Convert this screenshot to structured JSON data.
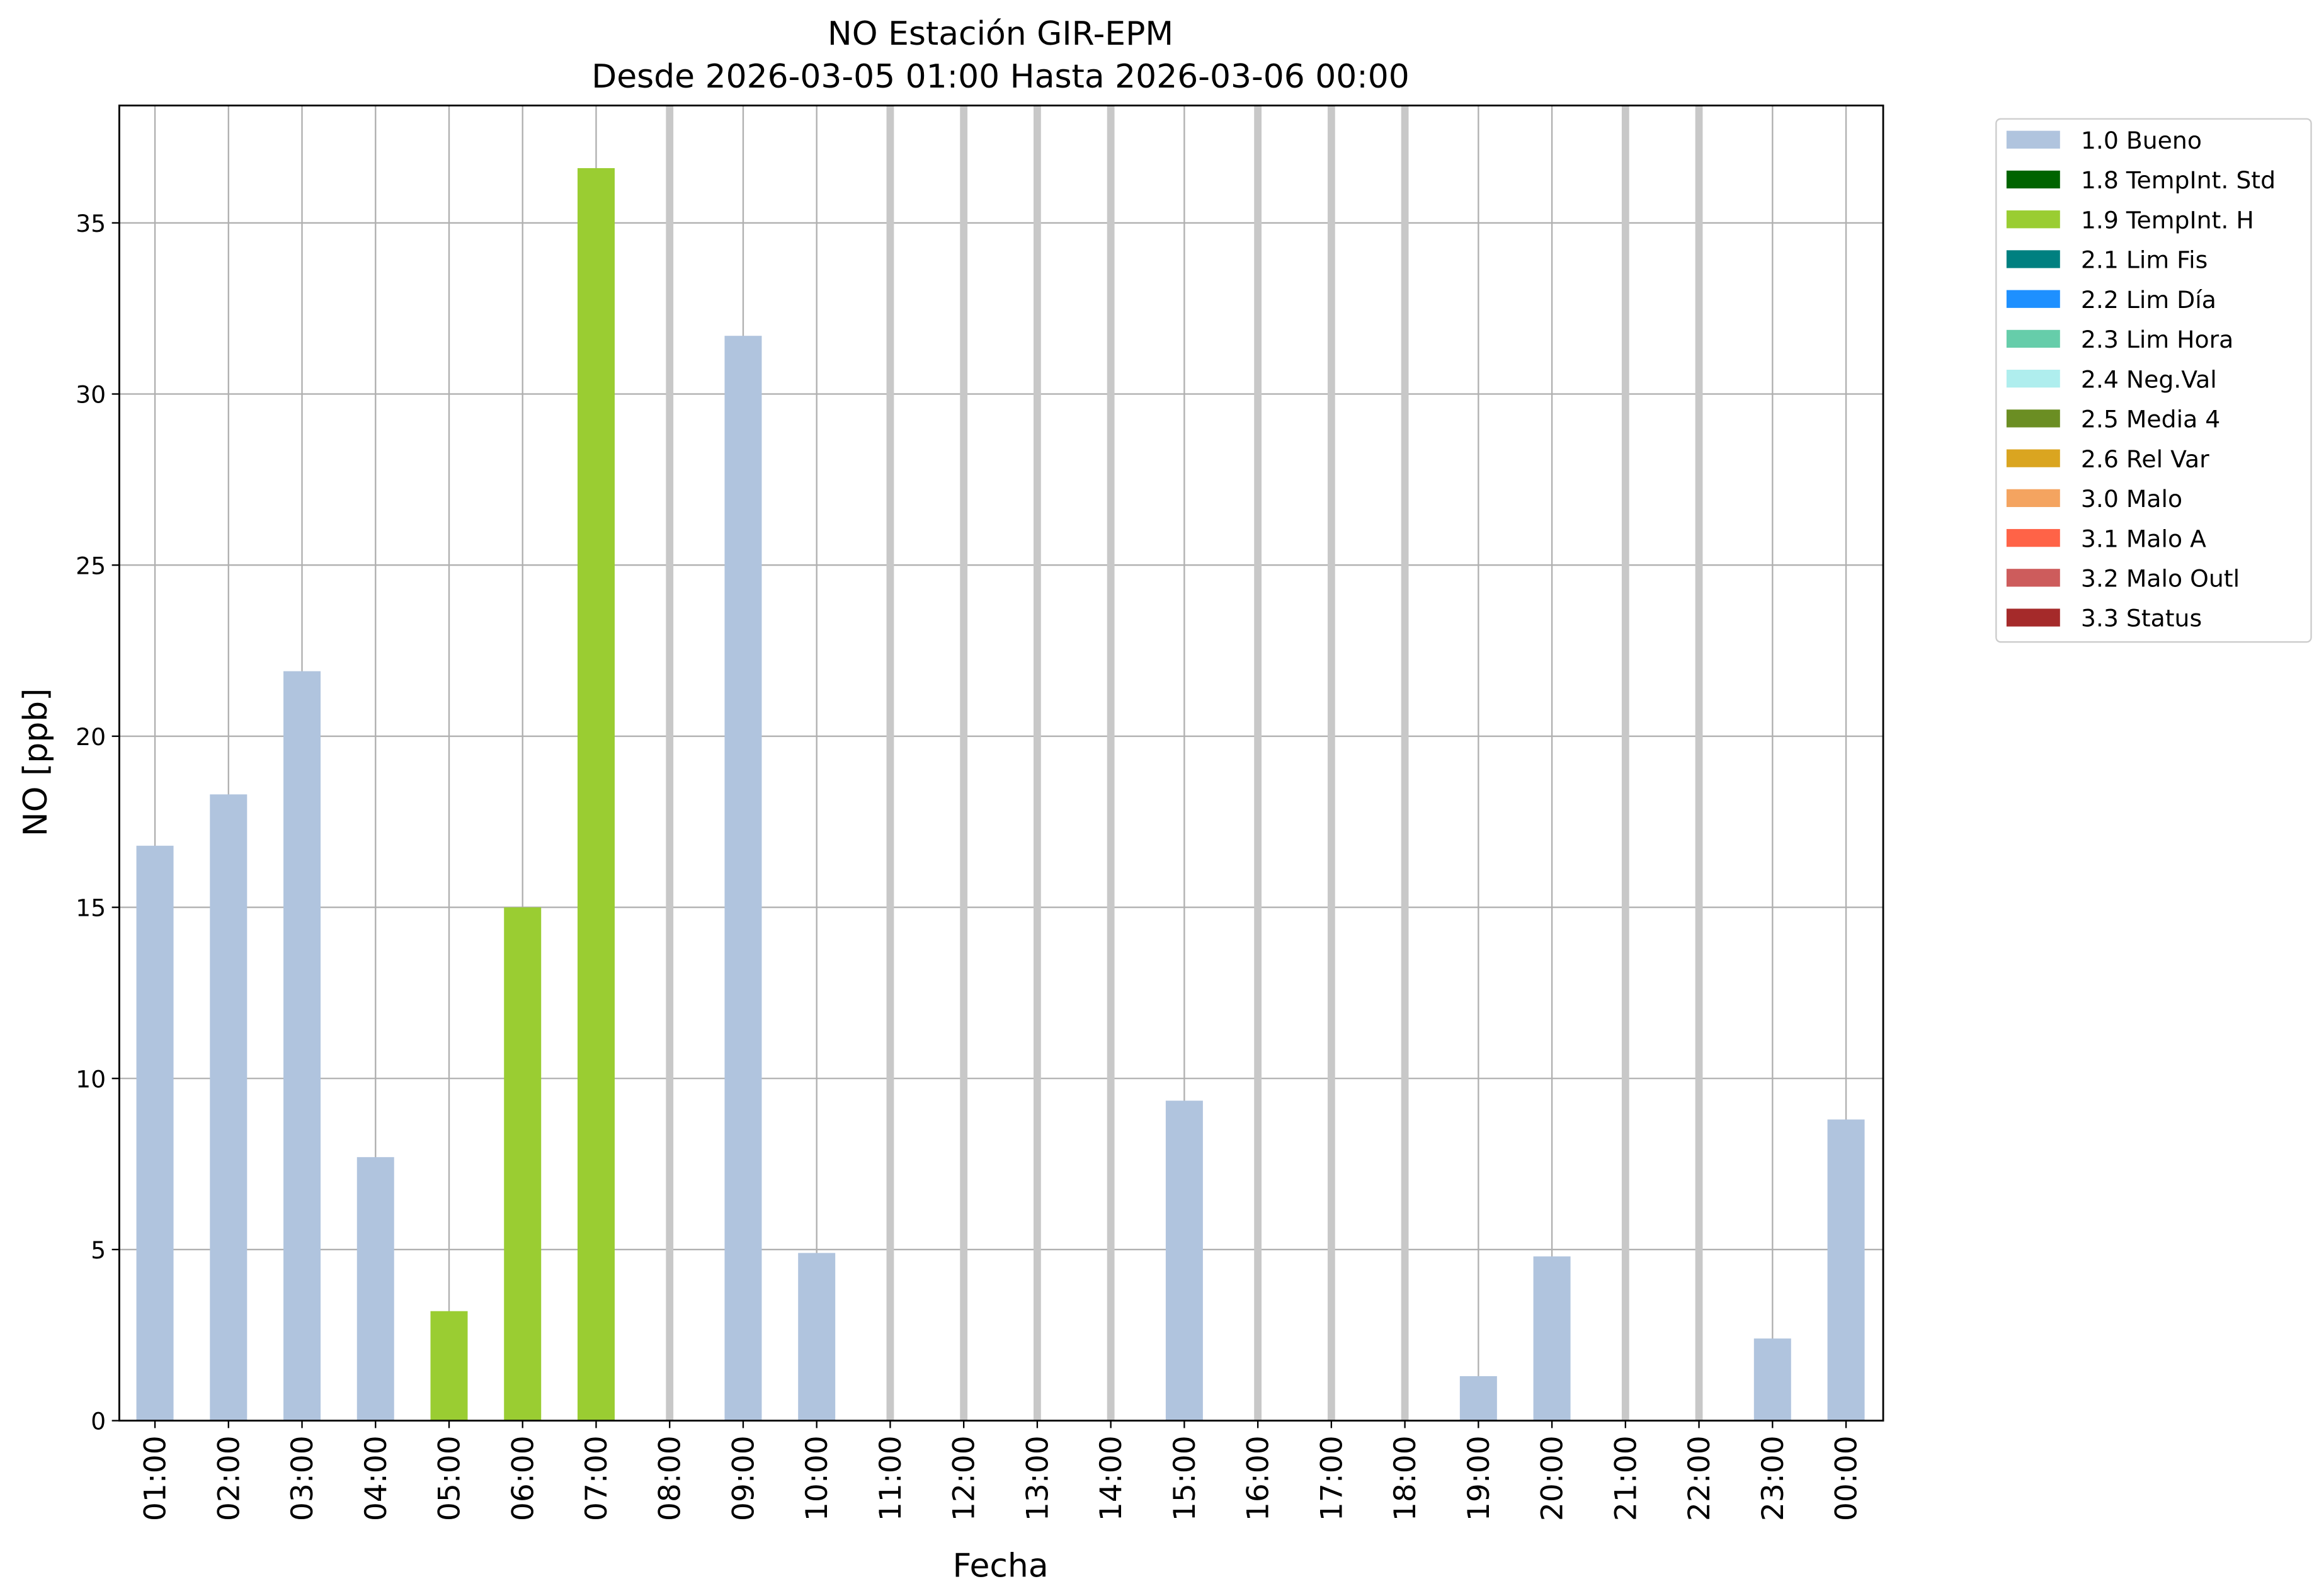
{
  "chart_data": {
    "type": "bar",
    "title": "NO Estación GIR-EPM",
    "subtitle": "Desde 2026-03-05 01:00 Hasta 2026-03-06 00:00",
    "x_label": "Fecha",
    "y_label": "NO [ppb]",
    "categories": [
      "01:00",
      "02:00",
      "03:00",
      "04:00",
      "05:00",
      "06:00",
      "07:00",
      "08:00",
      "09:00",
      "10:00",
      "11:00",
      "12:00",
      "13:00",
      "14:00",
      "15:00",
      "16:00",
      "17:00",
      "18:00",
      "19:00",
      "20:00",
      "21:00",
      "22:00",
      "23:00",
      "00:00"
    ],
    "series": [
      {
        "name": "1.0 Bueno",
        "color": "#b0c4de",
        "values": [
          16.8,
          18.3,
          21.9,
          7.7,
          null,
          null,
          null,
          null,
          31.7,
          4.9,
          null,
          null,
          null,
          null,
          9.35,
          null,
          null,
          null,
          1.3,
          4.8,
          null,
          null,
          2.4,
          8.8
        ]
      },
      {
        "name": "1.8 TempInt. Std",
        "color": "#006400",
        "values": [
          null,
          null,
          null,
          null,
          null,
          null,
          null,
          null,
          null,
          null,
          null,
          null,
          null,
          null,
          null,
          null,
          null,
          null,
          null,
          null,
          null,
          null,
          null,
          null
        ]
      },
      {
        "name": "1.9 TempInt. H",
        "color": "#9acd32",
        "values": [
          null,
          null,
          null,
          null,
          3.2,
          15.0,
          36.6,
          null,
          null,
          null,
          null,
          null,
          null,
          null,
          null,
          null,
          null,
          null,
          null,
          null,
          null,
          null,
          null,
          null
        ]
      },
      {
        "name": "2.1 Lim Fis",
        "color": "#008080",
        "values": [
          null,
          null,
          null,
          null,
          null,
          null,
          null,
          null,
          null,
          null,
          null,
          null,
          null,
          null,
          null,
          null,
          null,
          null,
          null,
          null,
          null,
          null,
          null,
          null
        ]
      },
      {
        "name": "2.2 Lim Día",
        "color": "#1e90ff",
        "values": [
          null,
          null,
          null,
          null,
          null,
          null,
          null,
          null,
          null,
          null,
          null,
          null,
          null,
          null,
          null,
          null,
          null,
          null,
          null,
          null,
          null,
          null,
          null,
          null
        ]
      },
      {
        "name": "2.3 Lim Hora",
        "color": "#66cdaa",
        "values": [
          null,
          null,
          null,
          null,
          null,
          null,
          null,
          null,
          null,
          null,
          null,
          null,
          null,
          null,
          null,
          null,
          null,
          null,
          null,
          null,
          null,
          null,
          null,
          null
        ]
      },
      {
        "name": "2.4 Neg.Val",
        "color": "#afeeee",
        "values": [
          null,
          null,
          null,
          null,
          null,
          null,
          null,
          null,
          null,
          null,
          null,
          null,
          null,
          null,
          null,
          null,
          null,
          null,
          null,
          null,
          null,
          null,
          null,
          null
        ]
      },
      {
        "name": "2.5 Media 4",
        "color": "#6b8e23",
        "values": [
          null,
          null,
          null,
          null,
          null,
          null,
          null,
          null,
          null,
          null,
          null,
          null,
          null,
          null,
          null,
          null,
          null,
          null,
          null,
          null,
          null,
          null,
          null,
          null
        ]
      },
      {
        "name": "2.6 Rel Var",
        "color": "#daa520",
        "values": [
          null,
          null,
          null,
          null,
          null,
          null,
          null,
          null,
          null,
          null,
          null,
          null,
          null,
          null,
          null,
          null,
          null,
          null,
          null,
          null,
          null,
          null,
          null,
          null
        ]
      },
      {
        "name": "3.0 Malo",
        "color": "#f4a460",
        "values": [
          null,
          null,
          null,
          null,
          null,
          null,
          null,
          null,
          null,
          null,
          null,
          null,
          null,
          null,
          null,
          null,
          null,
          null,
          null,
          null,
          null,
          null,
          null,
          null
        ]
      },
      {
        "name": "3.1 Malo A",
        "color": "#ff6347",
        "values": [
          null,
          null,
          null,
          null,
          null,
          null,
          null,
          null,
          null,
          null,
          null,
          null,
          null,
          null,
          null,
          null,
          null,
          null,
          null,
          null,
          null,
          null,
          null,
          null
        ]
      },
      {
        "name": "3.2 Malo Outl",
        "color": "#cd5c5c",
        "values": [
          null,
          null,
          null,
          null,
          null,
          null,
          null,
          null,
          null,
          null,
          null,
          null,
          null,
          null,
          null,
          null,
          null,
          null,
          null,
          null,
          null,
          null,
          null,
          null
        ]
      },
      {
        "name": "3.3 Status",
        "color": "#a52a2a",
        "values": [
          null,
          null,
          null,
          null,
          null,
          null,
          null,
          null,
          null,
          null,
          null,
          null,
          null,
          null,
          null,
          null,
          null,
          null,
          null,
          null,
          null,
          null,
          null,
          null
        ]
      }
    ],
    "ylim": [
      0,
      38.43
    ],
    "yticks": [
      0,
      5,
      10,
      15,
      20,
      25,
      30,
      35
    ],
    "grid": true,
    "legend": "outside-right"
  }
}
